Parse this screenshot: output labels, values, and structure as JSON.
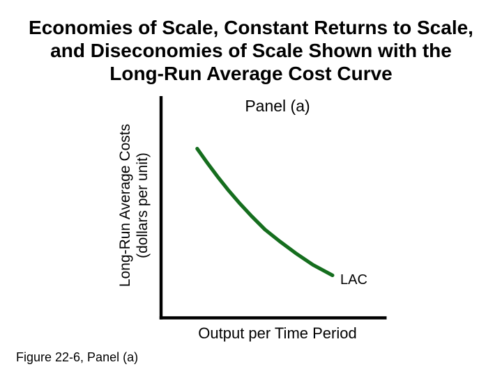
{
  "slide": {
    "title_lines": [
      "Economies of Scale, Constant Returns to Scale,",
      "and Diseconomies of Scale Shown with the",
      "Long-Run Average Cost Curve"
    ],
    "caption": "Figure 22-6, Panel (a)"
  },
  "chart": {
    "panel_label": "Panel (a)",
    "y_axis_label_line1": "Long-Run Average Costs",
    "y_axis_label_line2": "(dollars per unit)",
    "x_axis_label": "Output per Time Period",
    "curve_label": "LAC",
    "curve_color": "#156e1e",
    "axis_color": "#000000",
    "background_color": "#ffffff"
  },
  "chart_data": {
    "type": "line",
    "title": "Panel (a)",
    "xlabel": "Output per Time Period",
    "ylabel": "Long-Run Average Costs (dollars per unit)",
    "grid": false,
    "tick_labels": "none (qualitative axes, no numeric scale shown)",
    "xlim": [
      0,
      100
    ],
    "ylim": [
      0,
      100
    ],
    "legend_position": "inline annotation at right end of curve",
    "series": [
      {
        "name": "LAC",
        "annotation": "LAC",
        "color": "#156e1e",
        "shape": "downward-sloping convex long-run average cost curve (economies of scale)",
        "x": [
          16.0,
          20.4,
          25.0,
          29.6,
          34.9,
          40.1,
          46.0,
          52.5,
          59.6,
          67.3,
          75.9
        ],
        "y": [
          76.4,
          70.1,
          63.8,
          57.9,
          51.6,
          45.9,
          39.9,
          34.6,
          29.2,
          23.9,
          19.2
        ]
      }
    ]
  }
}
